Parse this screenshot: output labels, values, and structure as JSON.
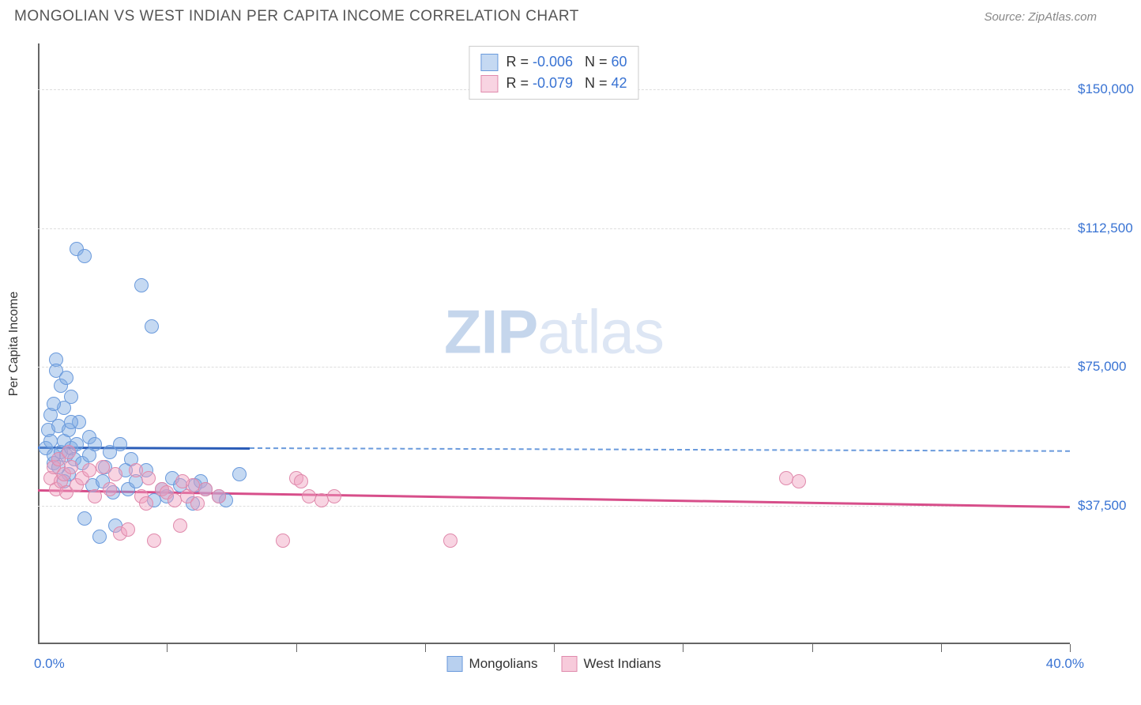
{
  "header": {
    "title": "MONGOLIAN VS WEST INDIAN PER CAPITA INCOME CORRELATION CHART",
    "source": "Source: ZipAtlas.com"
  },
  "chart": {
    "type": "scatter-with-regression",
    "y_axis_title": "Per Capita Income",
    "background_color": "#ffffff",
    "grid_color": "#dddddd",
    "axis_color": "#666666",
    "xlim": [
      0,
      40
    ],
    "ylim": [
      0,
      162500
    ],
    "x_ticks": [
      0,
      5,
      10,
      15,
      20,
      25,
      30,
      35,
      40
    ],
    "x_tick_labels_shown": {
      "left": "0.0%",
      "right": "40.0%"
    },
    "y_gridlines": [
      37500,
      75000,
      112500,
      150000
    ],
    "y_tick_labels": [
      "$37,500",
      "$75,000",
      "$112,500",
      "$150,000"
    ],
    "watermark": {
      "bold_part": "ZIP",
      "rest": "atlas"
    },
    "point_radius": 9,
    "point_stroke_width": 1,
    "series": [
      {
        "id": "mongolians",
        "name": "Mongolians",
        "fill_color": "rgba(126, 170, 226, 0.45)",
        "stroke_color": "#6a9adc",
        "R": "-0.006",
        "N": "60",
        "trend": {
          "solid_color": "#2b5db8",
          "dashed_color": "#6a9adc",
          "width": 3,
          "y_start": 53500,
          "y_end": 52500,
          "solid_x_end": 8.2
        },
        "points": [
          [
            0.3,
            53000
          ],
          [
            0.4,
            58000
          ],
          [
            0.5,
            62000
          ],
          [
            0.5,
            55000
          ],
          [
            0.6,
            49000
          ],
          [
            0.6,
            51000
          ],
          [
            0.7,
            77000
          ],
          [
            0.7,
            74000
          ],
          [
            0.8,
            59000
          ],
          [
            0.8,
            48000
          ],
          [
            0.9,
            52000
          ],
          [
            0.9,
            70000
          ],
          [
            1.0,
            64000
          ],
          [
            1.0,
            55000
          ],
          [
            1.1,
            51000
          ],
          [
            1.1,
            72000
          ],
          [
            1.2,
            58000
          ],
          [
            1.2,
            46000
          ],
          [
            1.3,
            67000
          ],
          [
            1.3,
            53000
          ],
          [
            1.4,
            50000
          ],
          [
            1.5,
            54000
          ],
          [
            1.5,
            107000
          ],
          [
            1.6,
            60000
          ],
          [
            1.7,
            49000
          ],
          [
            1.8,
            105000
          ],
          [
            1.8,
            34000
          ],
          [
            2.0,
            56000
          ],
          [
            2.0,
            51000
          ],
          [
            2.1,
            43000
          ],
          [
            2.2,
            54000
          ],
          [
            2.4,
            29000
          ],
          [
            2.5,
            44000
          ],
          [
            2.6,
            48000
          ],
          [
            2.8,
            52000
          ],
          [
            2.9,
            41000
          ],
          [
            3.0,
            32000
          ],
          [
            3.2,
            54000
          ],
          [
            3.4,
            47000
          ],
          [
            3.5,
            42000
          ],
          [
            3.6,
            50000
          ],
          [
            3.8,
            44000
          ],
          [
            4.0,
            97000
          ],
          [
            4.2,
            47000
          ],
          [
            4.4,
            86000
          ],
          [
            4.5,
            39000
          ],
          [
            4.8,
            42000
          ],
          [
            5.0,
            40000
          ],
          [
            5.2,
            45000
          ],
          [
            5.5,
            43000
          ],
          [
            6.0,
            38000
          ],
          [
            6.1,
            43000
          ],
          [
            6.3,
            44000
          ],
          [
            6.5,
            42000
          ],
          [
            7.0,
            40000
          ],
          [
            7.3,
            39000
          ],
          [
            7.8,
            46000
          ],
          [
            1.0,
            44000
          ],
          [
            1.3,
            60000
          ],
          [
            0.6,
            65000
          ]
        ]
      },
      {
        "id": "west_indians",
        "name": "West Indians",
        "fill_color": "rgba(240, 160, 190, 0.45)",
        "stroke_color": "#e08aac",
        "R": "-0.079",
        "N": "42",
        "trend": {
          "solid_color": "#d74e8a",
          "dashed_color": "#e08aac",
          "width": 3,
          "y_start": 42000,
          "y_end": 37500,
          "solid_x_end": 40
        },
        "points": [
          [
            0.5,
            45000
          ],
          [
            0.6,
            48000
          ],
          [
            0.7,
            42000
          ],
          [
            0.8,
            50000
          ],
          [
            0.9,
            44000
          ],
          [
            1.0,
            46000
          ],
          [
            1.1,
            41000
          ],
          [
            1.3,
            48000
          ],
          [
            1.5,
            43000
          ],
          [
            1.7,
            45000
          ],
          [
            2.0,
            47000
          ],
          [
            2.2,
            40000
          ],
          [
            2.5,
            48000
          ],
          [
            2.8,
            42000
          ],
          [
            3.0,
            46000
          ],
          [
            3.2,
            30000
          ],
          [
            3.5,
            31000
          ],
          [
            3.8,
            47000
          ],
          [
            4.0,
            40000
          ],
          [
            4.3,
            45000
          ],
          [
            4.5,
            28000
          ],
          [
            4.8,
            42000
          ],
          [
            5.0,
            41000
          ],
          [
            5.3,
            39000
          ],
          [
            5.5,
            32000
          ],
          [
            5.8,
            40000
          ],
          [
            6.0,
            43000
          ],
          [
            6.2,
            38000
          ],
          [
            6.5,
            42000
          ],
          [
            7.0,
            40000
          ],
          [
            9.5,
            28000
          ],
          [
            10.0,
            45000
          ],
          [
            10.2,
            44000
          ],
          [
            10.5,
            40000
          ],
          [
            11.0,
            39000
          ],
          [
            11.5,
            40000
          ],
          [
            16.0,
            28000
          ],
          [
            29.0,
            45000
          ],
          [
            29.5,
            44000
          ],
          [
            1.2,
            52000
          ],
          [
            4.2,
            38000
          ],
          [
            5.6,
            44000
          ]
        ]
      }
    ],
    "stats_legend_style": {
      "border_color": "#cccccc",
      "label_color": "#333333",
      "value_color": "#3973d3"
    },
    "bottom_legend": [
      {
        "swatch_fill": "rgba(126, 170, 226, 0.55)",
        "swatch_border": "#6a9adc",
        "label": "Mongolians"
      },
      {
        "swatch_fill": "rgba(240, 160, 190, 0.55)",
        "swatch_border": "#e08aac",
        "label": "West Indians"
      }
    ]
  }
}
